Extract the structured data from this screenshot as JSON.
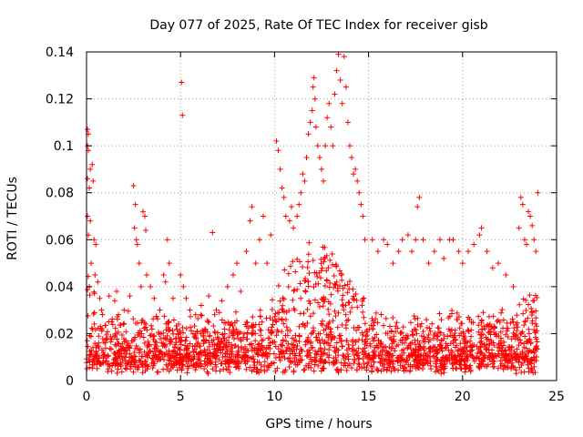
{
  "chart_data": {
    "type": "scatter",
    "title": "Day 077 of 2025, Rate Of TEC Index for receiver gisb",
    "xlabel": "GPS time / hours",
    "ylabel": "ROTI / TECUs",
    "xlim": [
      0,
      25
    ],
    "ylim": [
      0,
      0.14
    ],
    "xticks": [
      0,
      5,
      10,
      15,
      20,
      25
    ],
    "yticks": [
      0,
      0.02,
      0.04,
      0.06,
      0.08,
      0.1,
      0.12,
      0.14
    ],
    "xtick_labels": [
      "0",
      "5",
      "10",
      "15",
      "20",
      "25"
    ],
    "ytick_labels": [
      "0",
      "0.02",
      "0.04",
      "0.06",
      "0.08",
      "0.1",
      "0.12",
      "0.14"
    ],
    "grid": true,
    "legend": "none",
    "marker": "plus",
    "color": "#ff0000",
    "series": [
      {
        "name": "ROTI",
        "points": [
          [
            0.05,
            0.107
          ],
          [
            0.1,
            0.105
          ],
          [
            0.05,
            0.1
          ],
          [
            0.1,
            0.098
          ],
          [
            0.2,
            0.09
          ],
          [
            0.05,
            0.086
          ],
          [
            0.15,
            0.082
          ],
          [
            0.3,
            0.092
          ],
          [
            0.35,
            0.085
          ],
          [
            0.05,
            0.07
          ],
          [
            0.2,
            0.068
          ],
          [
            0.1,
            0.062
          ],
          [
            0.4,
            0.06
          ],
          [
            0.5,
            0.058
          ],
          [
            0.25,
            0.05
          ],
          [
            0.45,
            0.045
          ],
          [
            0.6,
            0.042
          ],
          [
            0.15,
            0.04
          ],
          [
            0.7,
            0.035
          ],
          [
            0.8,
            0.03
          ],
          [
            1.2,
            0.036
          ],
          [
            1.5,
            0.034
          ],
          [
            1.6,
            0.038
          ],
          [
            1.7,
            0.028
          ],
          [
            2.0,
            0.03
          ],
          [
            2.3,
            0.036
          ],
          [
            2.5,
            0.083
          ],
          [
            2.6,
            0.075
          ],
          [
            2.55,
            0.065
          ],
          [
            2.65,
            0.06
          ],
          [
            2.7,
            0.058
          ],
          [
            2.8,
            0.05
          ],
          [
            2.9,
            0.04
          ],
          [
            3.0,
            0.072
          ],
          [
            3.1,
            0.07
          ],
          [
            3.15,
            0.064
          ],
          [
            3.2,
            0.045
          ],
          [
            3.4,
            0.04
          ],
          [
            3.6,
            0.035
          ],
          [
            3.9,
            0.03
          ],
          [
            4.1,
            0.045
          ],
          [
            4.2,
            0.042
          ],
          [
            4.3,
            0.06
          ],
          [
            4.4,
            0.05
          ],
          [
            4.6,
            0.035
          ],
          [
            5.05,
            0.127
          ],
          [
            5.1,
            0.113
          ],
          [
            5.0,
            0.045
          ],
          [
            5.15,
            0.04
          ],
          [
            5.3,
            0.035
          ],
          [
            5.5,
            0.03
          ],
          [
            5.8,
            0.028
          ],
          [
            6.1,
            0.032
          ],
          [
            6.5,
            0.036
          ],
          [
            6.7,
            0.063
          ],
          [
            6.9,
            0.03
          ],
          [
            7.2,
            0.034
          ],
          [
            7.5,
            0.04
          ],
          [
            7.8,
            0.045
          ],
          [
            8.0,
            0.05
          ],
          [
            8.2,
            0.038
          ],
          [
            8.5,
            0.055
          ],
          [
            8.7,
            0.068
          ],
          [
            8.8,
            0.074
          ],
          [
            9.0,
            0.05
          ],
          [
            9.2,
            0.06
          ],
          [
            9.4,
            0.07
          ],
          [
            9.6,
            0.05
          ],
          [
            9.8,
            0.062
          ],
          [
            10.1,
            0.102
          ],
          [
            10.2,
            0.098
          ],
          [
            10.3,
            0.09
          ],
          [
            10.4,
            0.082
          ],
          [
            10.5,
            0.078
          ],
          [
            10.6,
            0.07
          ],
          [
            10.8,
            0.068
          ],
          [
            10.9,
            0.074
          ],
          [
            11.0,
            0.065
          ],
          [
            11.2,
            0.07
          ],
          [
            11.3,
            0.075
          ],
          [
            11.4,
            0.08
          ],
          [
            11.5,
            0.088
          ],
          [
            11.6,
            0.085
          ],
          [
            11.7,
            0.095
          ],
          [
            11.8,
            0.105
          ],
          [
            11.9,
            0.11
          ],
          [
            12.0,
            0.115
          ],
          [
            12.05,
            0.125
          ],
          [
            12.1,
            0.129
          ],
          [
            12.15,
            0.12
          ],
          [
            12.2,
            0.108
          ],
          [
            12.3,
            0.1
          ],
          [
            12.4,
            0.095
          ],
          [
            12.5,
            0.09
          ],
          [
            12.6,
            0.085
          ],
          [
            12.7,
            0.1
          ],
          [
            12.8,
            0.112
          ],
          [
            12.9,
            0.118
          ],
          [
            13.0,
            0.108
          ],
          [
            13.1,
            0.1
          ],
          [
            13.2,
            0.122
          ],
          [
            13.3,
            0.132
          ],
          [
            13.4,
            0.139
          ],
          [
            13.5,
            0.128
          ],
          [
            13.6,
            0.118
          ],
          [
            13.7,
            0.138
          ],
          [
            13.8,
            0.125
          ],
          [
            13.9,
            0.11
          ],
          [
            14.0,
            0.1
          ],
          [
            14.1,
            0.095
          ],
          [
            14.2,
            0.088
          ],
          [
            14.3,
            0.09
          ],
          [
            14.4,
            0.085
          ],
          [
            14.5,
            0.08
          ],
          [
            14.6,
            0.075
          ],
          [
            14.7,
            0.07
          ],
          [
            14.8,
            0.06
          ],
          [
            15.2,
            0.06
          ],
          [
            15.5,
            0.055
          ],
          [
            15.8,
            0.06
          ],
          [
            16.0,
            0.058
          ],
          [
            16.3,
            0.05
          ],
          [
            16.6,
            0.055
          ],
          [
            16.8,
            0.06
          ],
          [
            17.1,
            0.062
          ],
          [
            17.3,
            0.055
          ],
          [
            17.5,
            0.06
          ],
          [
            17.6,
            0.074
          ],
          [
            17.7,
            0.078
          ],
          [
            17.9,
            0.06
          ],
          [
            18.2,
            0.05
          ],
          [
            18.5,
            0.055
          ],
          [
            18.8,
            0.06
          ],
          [
            19.0,
            0.052
          ],
          [
            19.3,
            0.06
          ],
          [
            19.5,
            0.06
          ],
          [
            19.8,
            0.055
          ],
          [
            20.0,
            0.05
          ],
          [
            20.3,
            0.055
          ],
          [
            20.6,
            0.058
          ],
          [
            20.9,
            0.062
          ],
          [
            21.0,
            0.065
          ],
          [
            21.3,
            0.055
          ],
          [
            21.6,
            0.048
          ],
          [
            21.9,
            0.05
          ],
          [
            22.3,
            0.045
          ],
          [
            22.7,
            0.04
          ],
          [
            23.0,
            0.065
          ],
          [
            23.1,
            0.078
          ],
          [
            23.2,
            0.075
          ],
          [
            23.3,
            0.06
          ],
          [
            23.4,
            0.058
          ],
          [
            23.5,
            0.072
          ],
          [
            23.6,
            0.07
          ],
          [
            23.7,
            0.066
          ],
          [
            23.8,
            0.06
          ],
          [
            23.9,
            0.055
          ],
          [
            24.0,
            0.08
          ]
        ]
      }
    ]
  }
}
